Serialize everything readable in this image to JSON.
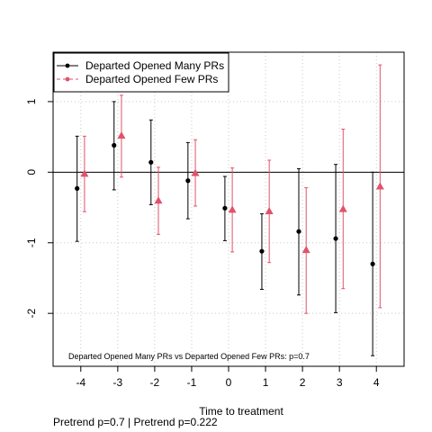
{
  "chart_data": {
    "type": "scatter",
    "xlabel": "Time to treatment",
    "ylabel": "",
    "x": [
      -4,
      -3,
      -2,
      -1,
      0,
      1,
      2,
      3,
      4
    ],
    "x_ticks": [
      "-4",
      "-3",
      "-2",
      "-1",
      "0",
      "1",
      "2",
      "3",
      "4"
    ],
    "y_ticks": [
      "-2",
      "-1",
      "0",
      "1"
    ],
    "xlim": [
      -4.75,
      4.75
    ],
    "ylim": [
      -2.75,
      1.7
    ],
    "grid": true,
    "hline": 0,
    "legend_position": "top-left",
    "series": [
      {
        "name": "Departed Opened Many PRs",
        "color": "#000000",
        "marker": "circle",
        "offset": -0.1,
        "values": [
          -0.23,
          0.38,
          0.14,
          -0.12,
          -0.51,
          -1.12,
          -0.84,
          -0.94,
          -1.3
        ],
        "ci_low": [
          -0.98,
          -0.25,
          -0.46,
          -0.66,
          -0.97,
          -1.66,
          -1.74,
          -1.99,
          -2.6
        ],
        "ci_high": [
          0.51,
          1.0,
          0.74,
          0.42,
          -0.06,
          -0.59,
          0.05,
          0.11,
          0.0
        ]
      },
      {
        "name": "Departed Opened Few PRs",
        "color": "#DF536B",
        "marker": "triangle",
        "offset": 0.1,
        "values": [
          -0.02,
          0.52,
          -0.4,
          -0.01,
          -0.53,
          -0.55,
          -1.1,
          -0.52,
          -0.2
        ],
        "ci_low": [
          -0.56,
          -0.07,
          -0.88,
          -0.48,
          -1.13,
          -1.28,
          -2.0,
          -1.65,
          -1.92
        ],
        "ci_high": [
          0.51,
          1.09,
          0.07,
          0.46,
          0.06,
          0.17,
          -0.22,
          0.61,
          1.52
        ]
      }
    ],
    "annotation": "Departed Opened Many PRs vs Departed Opened Few PRs: p=0.7"
  },
  "footer": "Pretrend p=0.7 | Pretrend p=0.222"
}
